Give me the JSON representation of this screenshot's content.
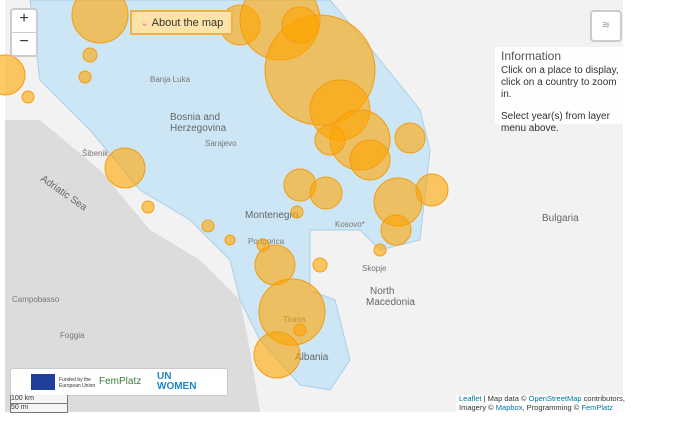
{
  "zoom": {
    "in": "+",
    "out": "−"
  },
  "about_button": "About the map",
  "info": {
    "title": "Information",
    "lines": [
      "Click on a place to display,",
      "click on a country to zoom in.",
      "Select year(s) from layer",
      "menu above."
    ]
  },
  "map": {
    "labels": [
      "Banja Luka",
      "Bosnia and",
      "Herzegovina",
      "Sarajevo",
      "Montenegro",
      "Podgorica",
      "Kosovo*",
      "Skopje",
      "North",
      "Macedonia",
      "Bulgaria",
      "Albania",
      "Tirana",
      "Adriatic Sea",
      "Šibenik",
      "Campobasso",
      "Foggia"
    ]
  },
  "logos": {
    "eu": [
      "Funded by the",
      "European Union"
    ],
    "femplatz": "FemPlatz",
    "unwomen": [
      "UN",
      "WOMEN"
    ]
  },
  "scale": [
    "100 km",
    "50 mi"
  ],
  "attribution": {
    "line1": [
      "Leaflet",
      " | Map data © ",
      "OpenStreetMap",
      " contributors,"
    ],
    "line2": [
      "Imagery © ",
      "Mapbox",
      ", Programming © ",
      "FemPlatz"
    ]
  }
}
